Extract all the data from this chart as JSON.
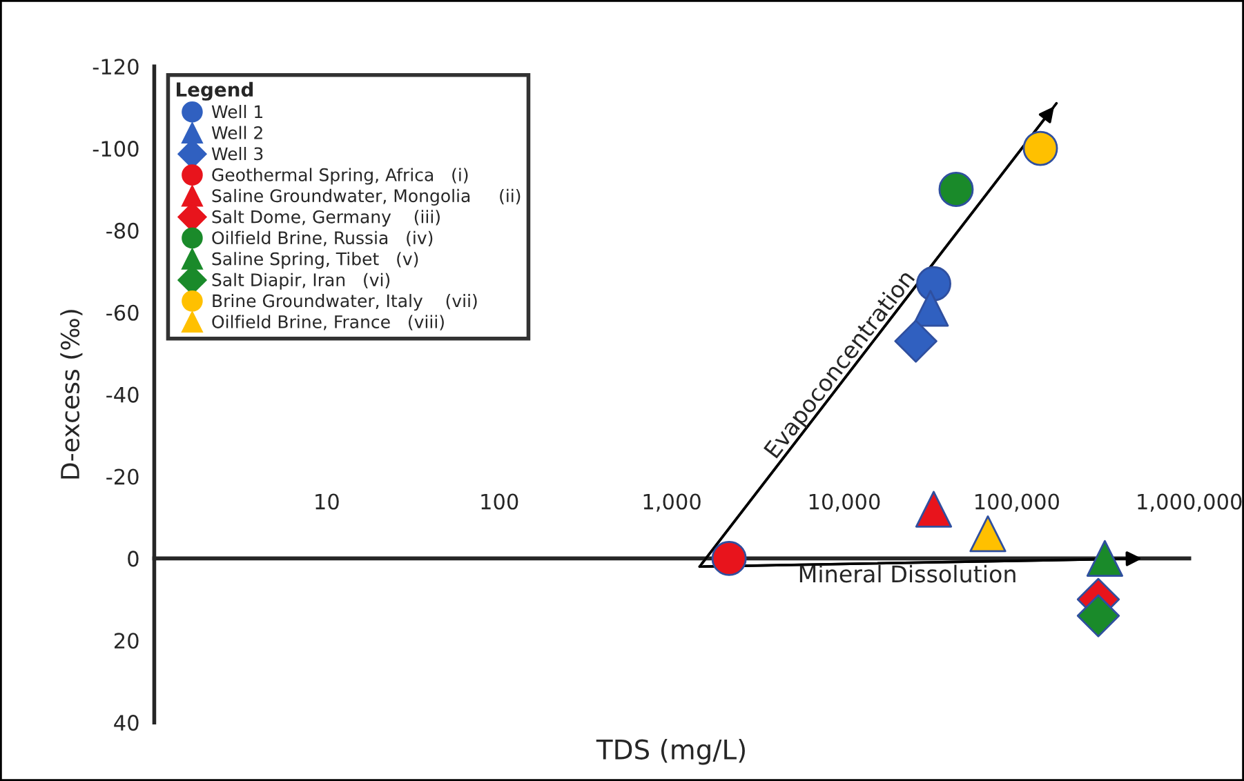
{
  "chart_data": {
    "type": "scatter",
    "xlabel": "TDS (mg/L)",
    "ylabel": "D-excess (‰)",
    "legend_title": "Legend",
    "legend": "top left",
    "grid": false,
    "log": "x",
    "xlim": [
      1,
      1000000
    ],
    "xticks": [
      {
        "value": 1,
        "label": null
      },
      {
        "value": 10,
        "label": "10"
      },
      {
        "value": 100,
        "label": "100"
      },
      {
        "value": 1000,
        "label": "1,000"
      },
      {
        "value": 10000,
        "label": "10,000"
      },
      {
        "value": 100000,
        "label": "100,000"
      },
      {
        "value": 1000000,
        "label": "1,000,000"
      }
    ],
    "ylim": [
      40,
      -120
    ],
    "yticks": [
      -120,
      -100,
      -80,
      -60,
      -40,
      -20,
      0,
      20,
      40
    ],
    "series": [
      {
        "name": "Well 1",
        "type": "scatter",
        "marker": "circle",
        "color": "#3060c0",
        "x": [
          33000
        ],
        "values": [
          -67
        ]
      },
      {
        "name": "Well 2",
        "type": "scatter",
        "marker": "triangle",
        "color": "#3060c0",
        "x": [
          31600
        ],
        "values": [
          -61
        ]
      },
      {
        "name": "Well 3",
        "type": "scatter",
        "marker": "diamond",
        "color": "#3060c0",
        "x": [
          26000
        ],
        "values": [
          -53
        ]
      },
      {
        "name": "Geothermal Spring, Africa   (i)",
        "type": "scatter",
        "marker": "circle",
        "color": "#e8141c",
        "x": [
          2150
        ],
        "values": [
          0
        ]
      },
      {
        "name": "Saline Groundwater, Mongolia     (ii)",
        "type": "scatter",
        "marker": "triangle",
        "color": "#e8141c",
        "x": [
          33000
        ],
        "values": [
          -12
        ]
      },
      {
        "name": "Salt Dome, Germany    (iii)",
        "type": "scatter",
        "marker": "diamond",
        "color": "#e8141c",
        "x": [
          297000
        ],
        "values": [
          10
        ]
      },
      {
        "name": "Oilfield Brine, Russia   (iv)",
        "type": "scatter",
        "marker": "circle",
        "color": "#1a8a2a",
        "x": [
          44500
        ],
        "values": [
          -90
        ]
      },
      {
        "name": "Saline Spring, Tibet   (v)",
        "type": "scatter",
        "marker": "triangle",
        "color": "#1a8a2a",
        "x": [
          324000
        ],
        "values": [
          0
        ]
      },
      {
        "name": "Salt Diapir, Iran   (vi)",
        "type": "scatter",
        "marker": "diamond",
        "color": "#1a8a2a",
        "x": [
          297000
        ],
        "values": [
          14
        ]
      },
      {
        "name": "Brine Groundwater, Italy    (vii)",
        "type": "scatter",
        "marker": "circle",
        "color": "#ffc000",
        "x": [
          137000
        ],
        "values": [
          -100
        ]
      },
      {
        "name": "Oilfield Brine, France   (viii)",
        "type": "scatter",
        "marker": "triangle",
        "color": "#ffc000",
        "x": [
          68000
        ],
        "values": [
          -6
        ]
      },
      {
        "type": "line",
        "marker": "none",
        "color": "#000000",
        "x": [
          1450,
          170000
        ],
        "values": [
          2,
          -111
        ]
      },
      {
        "type": "line",
        "marker": "none",
        "color": "#000000",
        "x": [
          1450,
          560000
        ],
        "values": [
          2,
          0
        ]
      }
    ],
    "annotations": [
      "Evapoconcentration",
      "Mineral Dissolution"
    ]
  }
}
